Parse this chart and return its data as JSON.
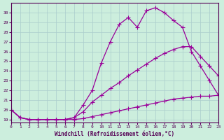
{
  "xlabel": "Windchill (Refroidissement éolien,°C)",
  "background_color": "#cceedd",
  "grid_color": "#aacccc",
  "line_color": "#990099",
  "xmin": 0,
  "xmax": 23,
  "ymin": 18.7,
  "ymax": 31.0,
  "yticks": [
    19,
    20,
    21,
    22,
    23,
    24,
    25,
    26,
    27,
    28,
    29,
    30
  ],
  "xticks": [
    0,
    1,
    2,
    3,
    4,
    5,
    6,
    7,
    8,
    9,
    10,
    11,
    12,
    13,
    14,
    15,
    16,
    17,
    18,
    19,
    20,
    21,
    22,
    23
  ],
  "line1_x": [
    0,
    1,
    2,
    3,
    4,
    5,
    6,
    7,
    8,
    9,
    10,
    11,
    12,
    13,
    14,
    15,
    16,
    17,
    18,
    19,
    20,
    21,
    22,
    23
  ],
  "line1_y": [
    20.0,
    19.2,
    19.0,
    19.0,
    19.0,
    19.0,
    19.0,
    19.0,
    19.1,
    19.3,
    19.5,
    19.7,
    19.9,
    20.1,
    20.3,
    20.5,
    20.7,
    20.9,
    21.1,
    21.2,
    21.3,
    21.4,
    21.4,
    21.5
  ],
  "line2_x": [
    0,
    1,
    2,
    3,
    4,
    5,
    6,
    7,
    8,
    9,
    10,
    11,
    12,
    13,
    14,
    15,
    16,
    17,
    18,
    19,
    20,
    21,
    22,
    23
  ],
  "line2_y": [
    20.0,
    19.2,
    19.0,
    19.0,
    19.0,
    19.0,
    19.0,
    19.2,
    19.8,
    20.8,
    21.5,
    22.2,
    22.8,
    23.5,
    24.1,
    24.7,
    25.3,
    25.8,
    26.2,
    26.5,
    26.5,
    25.5,
    24.5,
    23.5
  ],
  "line3_x": [
    0,
    1,
    2,
    3,
    4,
    5,
    6,
    7,
    8,
    9,
    10,
    11,
    12,
    13,
    14,
    15,
    16,
    17,
    18,
    19,
    20,
    21,
    22,
    23
  ],
  "line3_y": [
    20.0,
    19.2,
    19.0,
    19.0,
    19.0,
    19.0,
    19.0,
    19.2,
    20.5,
    22.0,
    24.8,
    27.0,
    28.8,
    29.5,
    28.5,
    30.2,
    30.5,
    30.0,
    29.2,
    28.5,
    26.0,
    24.5,
    23.0,
    21.5
  ]
}
